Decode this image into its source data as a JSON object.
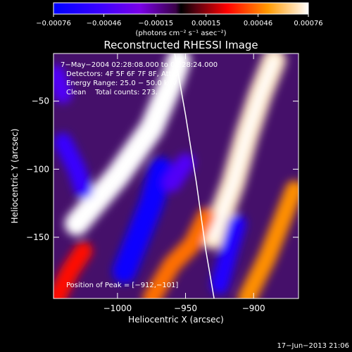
{
  "chart_data": {
    "type": "heatmap",
    "title": "Reconstructed RHESSI Image",
    "xlabel": "Heliocentric X (arcsec)",
    "ylabel": "Heliocentric Y (arcsec)",
    "xlim": [
      -1047,
      -867
    ],
    "ylim": [
      -195,
      -15
    ],
    "xticks": [
      -1000,
      -950,
      -900
    ],
    "xtick_labels": [
      "−1000",
      "−950",
      "−900"
    ],
    "yticks": [
      -50,
      -100,
      -150
    ],
    "ytick_labels": [
      "−50",
      "−100",
      "−150"
    ],
    "colorbar": {
      "min": -0.00076,
      "max": 0.00076,
      "ticks": [
        -0.00076,
        -0.00046,
        -0.00015,
        0.00015,
        0.00046,
        0.00076
      ],
      "tick_labels": [
        "−0.00076",
        "−0.00046",
        "−0.00015",
        "0.00015",
        "0.00046",
        "0.00076"
      ],
      "units_label": "(photons cm⁻² s⁻¹ asec⁻²)"
    },
    "info_lines": [
      "7−May−2004 02:28:08.000 to 02:28:24.000",
      "Detectors: 4F 5F 6F 7F 8F, Att 0",
      "Energy Range: 25.0 − 50.0 keV",
      "Clean    Total counts: 273."
    ],
    "peak_label": "Position of Peak = [−912,−101]",
    "peak_position": [
      -912,
      -101
    ],
    "limb_curve": [
      [
        -958,
        -15
      ],
      [
        -950,
        -60
      ],
      [
        -942,
        -110
      ],
      [
        -935,
        -160
      ],
      [
        -929,
        -195
      ]
    ],
    "features": [
      {
        "kind": "ridge",
        "value": 0.00076,
        "points": [
          [
            -1030,
            -140
          ],
          [
            -1000,
            -105
          ],
          [
            -975,
            -70
          ],
          [
            -960,
            -35
          ],
          [
            -955,
            -20
          ]
        ]
      },
      {
        "kind": "ridge",
        "value": 0.0007,
        "points": [
          [
            -930,
            -150
          ],
          [
            -915,
            -110
          ],
          [
            -905,
            -75
          ],
          [
            -895,
            -45
          ],
          [
            -885,
            -20
          ]
        ]
      },
      {
        "kind": "ridge",
        "value": 0.0005,
        "points": [
          [
            -905,
            -195
          ],
          [
            -890,
            -165
          ],
          [
            -880,
            -140
          ],
          [
            -870,
            -115
          ]
        ]
      },
      {
        "kind": "ridge",
        "value": 0.00045,
        "points": [
          [
            -975,
            -195
          ],
          [
            -960,
            -170
          ],
          [
            -945,
            -155
          ],
          [
            -935,
            -135
          ]
        ]
      },
      {
        "kind": "ridge",
        "value": 0.0003,
        "points": [
          [
            -1045,
            -195
          ],
          [
            -1035,
            -175
          ],
          [
            -1025,
            -160
          ]
        ]
      },
      {
        "kind": "trough",
        "value": -0.0007,
        "points": [
          [
            -995,
            -175
          ],
          [
            -985,
            -150
          ],
          [
            -975,
            -125
          ],
          [
            -968,
            -100
          ]
        ]
      },
      {
        "kind": "trough",
        "value": -0.0006,
        "points": [
          [
            -925,
            -185
          ],
          [
            -918,
            -160
          ],
          [
            -912,
            -140
          ]
        ]
      },
      {
        "kind": "trough",
        "value": -0.0005,
        "points": [
          [
            -1040,
            -80
          ],
          [
            -1030,
            -100
          ],
          [
            -1025,
            -115
          ]
        ]
      },
      {
        "kind": "trough",
        "value": -0.0004,
        "points": [
          [
            -1045,
            -30
          ],
          [
            -1040,
            -45
          ]
        ]
      },
      {
        "kind": "trough",
        "value": -0.0004,
        "points": [
          [
            -960,
            -110
          ],
          [
            -950,
            -95
          ]
        ]
      }
    ]
  },
  "timestamp": "17−Jun−2013 21:06",
  "colors": {
    "background": "#000000",
    "limb": "#ffffff",
    "text": "#ffffff"
  }
}
